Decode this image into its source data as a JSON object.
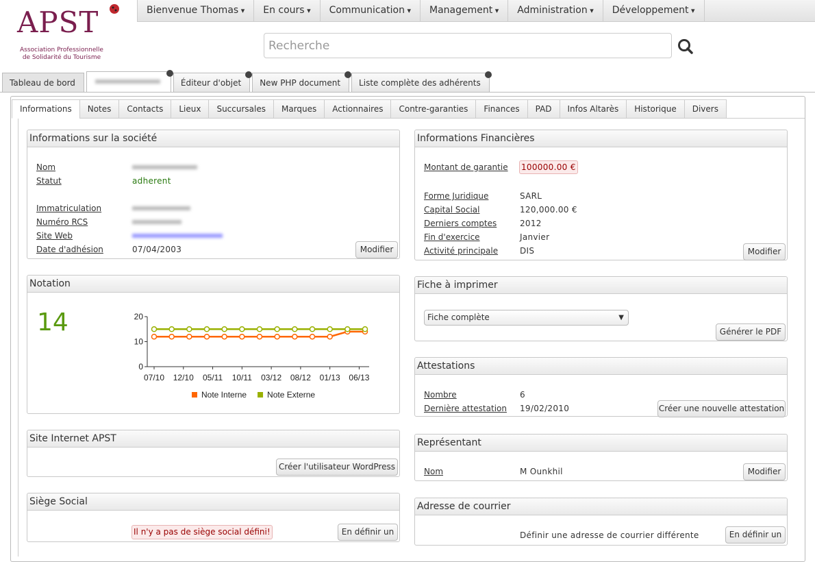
{
  "logo": {
    "name": "APST",
    "subtitle": [
      "Association Professionnelle",
      "de Solidarité du Tourisme"
    ]
  },
  "nav": [
    "Bienvenue Thomas",
    "En cours",
    "Communication",
    "Management",
    "Administration",
    "Développement"
  ],
  "search": {
    "placeholder": "Recherche"
  },
  "doc_tabs": [
    "Tableau de bord",
    "Éditeur d'objet",
    "New PHP document",
    "Liste complète des adhérents"
  ],
  "sub_tabs": [
    "Informations",
    "Notes",
    "Contacts",
    "Lieux",
    "Succursales",
    "Marques",
    "Actionnaires",
    "Contre-garanties",
    "Finances",
    "PAD",
    "Infos Altarès",
    "Historique",
    "Divers"
  ],
  "societe": {
    "title": "Informations sur la société",
    "fields": [
      {
        "label": "Nom"
      },
      {
        "label": "Statut",
        "value": "adherent"
      },
      {
        "label": "Immatriculation"
      },
      {
        "label": "Numéro RCS"
      },
      {
        "label": "Site Web"
      },
      {
        "label": "Date d'adhésion",
        "value": "07/04/2003"
      }
    ],
    "button": "Modifier"
  },
  "financieres": {
    "title": "Informations Financières",
    "fields": [
      {
        "label": "Montant de garantie",
        "value": "100000.00 €"
      },
      {
        "label": "Forme Juridique",
        "value": "SARL"
      },
      {
        "label": "Capital Social",
        "value": "120,000.00 €"
      },
      {
        "label": "Derniers comptes",
        "value": "2012"
      },
      {
        "label": "Fin d'exercice",
        "value": "Janvier"
      },
      {
        "label": "Activité principale",
        "value": "DIS"
      }
    ],
    "button": "Modifier"
  },
  "notation": {
    "title": "Notation",
    "score": 14
  },
  "chart_data": {
    "type": "line",
    "x": [
      "07/10",
      "10/10",
      "01/11",
      "04/11",
      "07/11",
      "10/11",
      "01/12",
      "04/12",
      "07/12",
      "10/12",
      "01/13",
      "04/13",
      "07/13"
    ],
    "series": [
      {
        "name": "Note Interne",
        "color": "#ff6600",
        "values": [
          12,
          12,
          12,
          12,
          12,
          12,
          12,
          12,
          12,
          12,
          12,
          14,
          14
        ]
      },
      {
        "name": "Note Externe",
        "color": "#99b000",
        "values": [
          15,
          15,
          15,
          15,
          15,
          15,
          15,
          15,
          15,
          15,
          15,
          15,
          15
        ]
      }
    ],
    "xlim": [
      "07/10",
      "07/13"
    ],
    "xticks": [
      "07/10",
      "12/10",
      "05/11",
      "10/11",
      "03/12",
      "08/12",
      "01/13",
      "06/13"
    ],
    "ylim": [
      0,
      20
    ],
    "yticks": [
      0,
      10,
      20
    ],
    "legend": "bottom"
  },
  "fiche": {
    "title": "Fiche à imprimer",
    "select": "Fiche complète",
    "button": "Générer le PDF"
  },
  "attestations": {
    "title": "Attestations",
    "fields": [
      {
        "label": "Nombre",
        "value": "6"
      },
      {
        "label": "Dernière attestation",
        "value": "19/02/2010"
      }
    ],
    "button": "Créer une nouvelle attestation"
  },
  "site": {
    "title": "Site Internet APST",
    "button": "Créer l'utilisateur WordPress"
  },
  "representant": {
    "title": "Représentant",
    "fields": [
      {
        "label": "Nom",
        "value": "M Ounkhil"
      }
    ],
    "button": "Modifier"
  },
  "siege": {
    "title": "Siège Social",
    "message": "Il n'y a pas de siège social défini!",
    "button": "En définir un"
  },
  "courrier": {
    "title": "Adresse de courrier",
    "text": "Définir une adresse de courrier différente",
    "button": "En définir un"
  }
}
